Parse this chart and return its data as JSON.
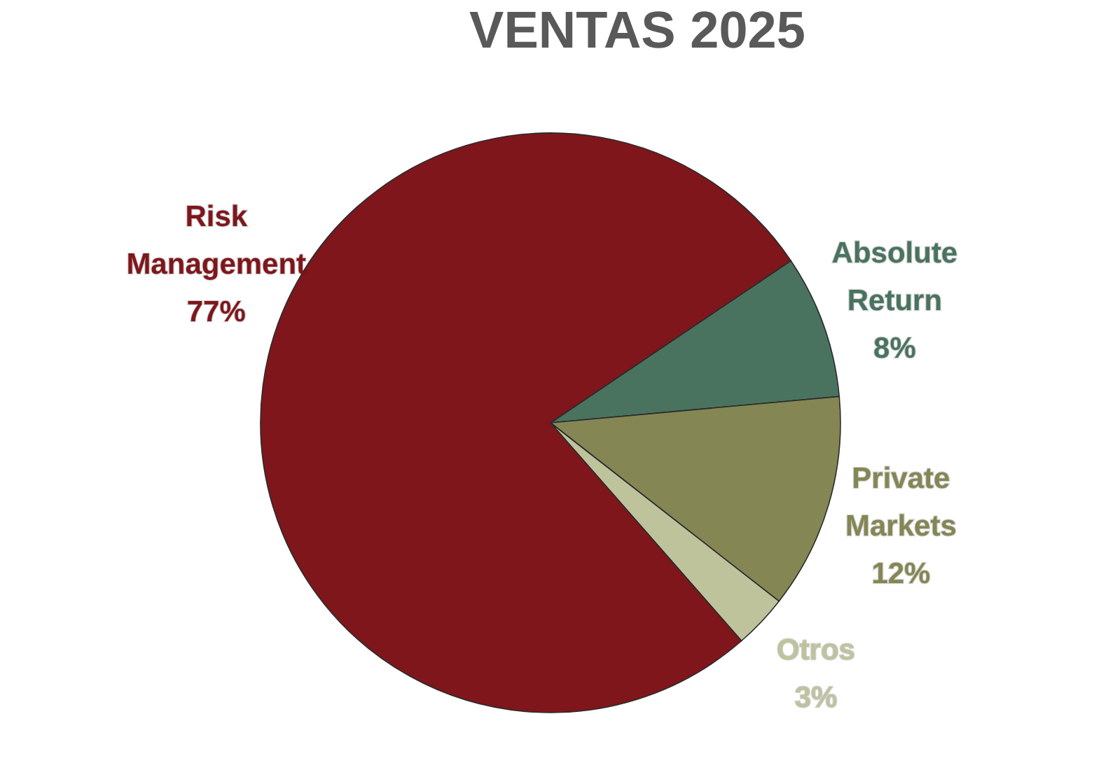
{
  "chart_data": {
    "type": "pie",
    "title": "VENTAS 2025",
    "categories": [
      "Absolute Return",
      "Private Markets",
      "Otros",
      "Risk Management"
    ],
    "values": [
      8,
      12,
      3,
      77
    ],
    "value_labels": [
      "8%",
      "12%",
      "3%",
      "77%"
    ],
    "colors": [
      "#4a735f",
      "#848654",
      "#bec39c",
      "#7f161b"
    ],
    "legend": false
  }
}
